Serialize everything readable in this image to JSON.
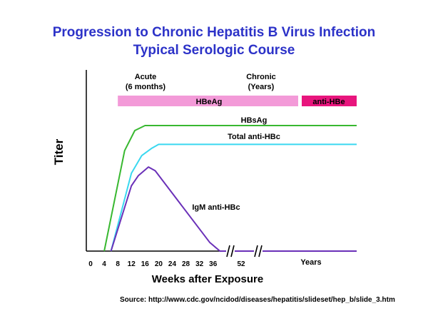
{
  "page": {
    "title_line1": "Progression to Chronic Hepatitis B Virus Infection",
    "title_line2": "Typical Serologic Course",
    "source": "Source: http://www.cdc.gov/ncidod/diseases/hepatitis/slideset/hep_b/slide_3.htm"
  },
  "chart_data": {
    "type": "line",
    "title": "Progression to Chronic Hepatitis B Virus Infection — Typical Serologic Course",
    "xlabel": "Weeks after Exposure",
    "ylabel": "Titer",
    "x_ticks": [
      "0",
      "4",
      "8",
      "12",
      "16",
      "20",
      "24",
      "28",
      "32",
      "36",
      "52"
    ],
    "x_years_label": "Years",
    "grid": false,
    "phases": [
      {
        "label_line1": "Acute",
        "label_line2": "(6 months)"
      },
      {
        "label_line1": "Chronic",
        "label_line2": "(Years)"
      }
    ],
    "bars": [
      {
        "name": "HBeAg",
        "color": "#f39ad8",
        "from_week": 8,
        "to_week": "years"
      },
      {
        "name": "anti-HBe",
        "color": "#e8157d",
        "from_week": "years",
        "to_week": "end"
      }
    ],
    "series": [
      {
        "name": "HBsAg",
        "color": "#38b830",
        "points": [
          [
            4,
            0
          ],
          [
            10,
            0.8
          ],
          [
            13,
            0.96
          ],
          [
            16,
            1.0
          ],
          [
            999,
            1.0
          ]
        ]
      },
      {
        "name": "Total anti-HBc",
        "color": "#3ad8f0",
        "points": [
          [
            6,
            0
          ],
          [
            12,
            0.62
          ],
          [
            15,
            0.76
          ],
          [
            18,
            0.82
          ],
          [
            20,
            0.85
          ],
          [
            999,
            0.85
          ]
        ]
      },
      {
        "name": "IgM anti-HBc",
        "color": "#6a30b8",
        "points": [
          [
            6,
            0
          ],
          [
            12,
            0.52
          ],
          [
            14,
            0.6
          ],
          [
            17,
            0.67
          ],
          [
            19,
            0.64
          ],
          [
            35,
            0.07
          ],
          [
            38,
            0
          ],
          [
            999,
            0
          ]
        ]
      }
    ],
    "axis_break_ticks": [
      "36",
      "52"
    ],
    "y_range": [
      0,
      1
    ]
  }
}
